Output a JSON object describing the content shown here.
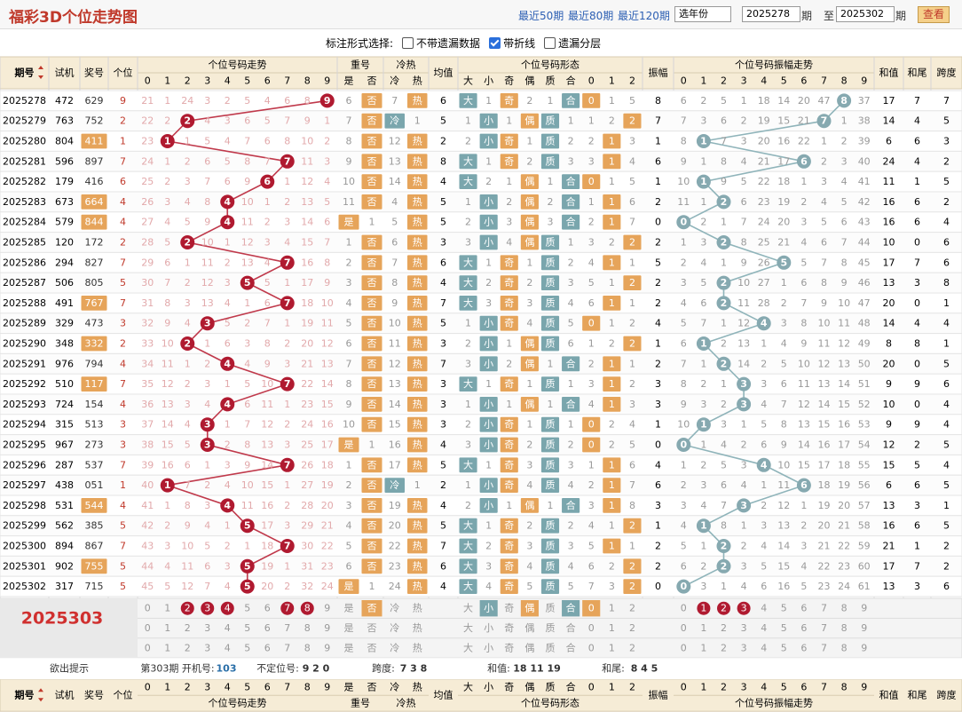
{
  "header": {
    "title": "福彩3D个位走势图",
    "links": [
      "最近50期",
      "最近80期",
      "最近120期"
    ],
    "year_select": "选年份",
    "from": "2025278",
    "from_unit": "期",
    "to_label": "至",
    "to": "2025302",
    "to_unit": "期",
    "button": "查看"
  },
  "options": {
    "label": "标注形式选择:",
    "items": [
      {
        "label": "不带遗漏数据",
        "checked": false
      },
      {
        "label": "带折线",
        "checked": true
      },
      {
        "label": "遗漏分层",
        "checked": false
      }
    ]
  },
  "columns": {
    "period": "期号",
    "test": "试机",
    "prize": "奖号",
    "digit": "个位",
    "trend": "个位号码走势",
    "trend_cols": [
      0,
      1,
      2,
      3,
      4,
      5,
      6,
      7,
      8,
      9
    ],
    "repeat": "重号",
    "repeat_cols": [
      "是",
      "否"
    ],
    "coldhot": "冷热",
    "coldhot_cols": [
      "冷",
      "热"
    ],
    "avg": "均值",
    "shape": "个位号码形态",
    "shape_cols": [
      "大",
      "小",
      "奇",
      "偶",
      "质",
      "合",
      0,
      1,
      2
    ],
    "amp": "振幅",
    "amp_trend": "个位号码振幅走势",
    "amp_cols": [
      0,
      1,
      2,
      3,
      4,
      5,
      6,
      7,
      8,
      9
    ],
    "sum": "和值",
    "tail": "和尾",
    "span": "跨度"
  },
  "rows": [
    {
      "period": "2025278",
      "test": "472",
      "prize": "629",
      "digit": 9,
      "trend": [
        21,
        1,
        24,
        3,
        2,
        5,
        4,
        6,
        8,
        9
      ],
      "repeat": [
        6,
        "否"
      ],
      "coldhot": [
        7,
        "热"
      ],
      "avg": 6,
      "shape": [
        "大",
        1,
        "奇",
        2,
        1,
        "合",
        0,
        1,
        5
      ],
      "amp": 8,
      "amp_trend": [
        6,
        2,
        5,
        1,
        18,
        14,
        20,
        47,
        8,
        37
      ],
      "sum": 17,
      "tail": 7,
      "span": 7
    },
    {
      "period": "2025279",
      "test": "763",
      "prize": "752",
      "digit": 2,
      "trend": [
        22,
        2,
        2,
        4,
        3,
        6,
        5,
        7,
        9,
        1
      ],
      "repeat": [
        7,
        "否"
      ],
      "coldhot": [
        "冷",
        1
      ],
      "avg": 5,
      "shape": [
        1,
        "小",
        1,
        "偶",
        "质",
        1,
        1,
        2,
        2
      ],
      "amp": 7,
      "amp_trend": [
        7,
        3,
        6,
        2,
        19,
        15,
        21,
        7,
        1,
        38
      ],
      "sum": 14,
      "tail": 4,
      "span": 5
    },
    {
      "period": "2025280",
      "test": "804",
      "prize": "411",
      "digit": 1,
      "trend": [
        23,
        1,
        1,
        5,
        4,
        7,
        6,
        8,
        10,
        2
      ],
      "repeat": [
        8,
        "否"
      ],
      "coldhot": [
        12,
        "热"
      ],
      "avg": 2,
      "shape": [
        2,
        "小",
        "奇",
        1,
        "质",
        2,
        2,
        1,
        3
      ],
      "amp": 1,
      "amp_trend": [
        8,
        1,
        7,
        3,
        20,
        16,
        22,
        1,
        2,
        39
      ],
      "sum": 6,
      "tail": 6,
      "span": 3
    },
    {
      "period": "2025281",
      "test": "596",
      "prize": "897",
      "digit": 7,
      "trend": [
        24,
        1,
        2,
        6,
        5,
        8,
        7,
        7,
        11,
        3
      ],
      "repeat": [
        9,
        "否"
      ],
      "coldhot": [
        13,
        "热"
      ],
      "avg": 8,
      "shape": [
        "大",
        1,
        "奇",
        2,
        "质",
        3,
        3,
        1,
        4
      ],
      "amp": 6,
      "amp_trend": [
        9,
        1,
        8,
        4,
        21,
        17,
        6,
        2,
        3,
        40
      ],
      "sum": 24,
      "tail": 4,
      "span": 2
    },
    {
      "period": "2025282",
      "test": "179",
      "prize": "416",
      "digit": 6,
      "trend": [
        25,
        2,
        3,
        7,
        6,
        9,
        6,
        1,
        12,
        4
      ],
      "repeat": [
        10,
        "否"
      ],
      "coldhot": [
        14,
        "热"
      ],
      "avg": 4,
      "shape": [
        "大",
        2,
        1,
        "偶",
        1,
        "合",
        0,
        1,
        5
      ],
      "amp": 1,
      "amp_trend": [
        10,
        1,
        9,
        5,
        22,
        18,
        1,
        3,
        4,
        41
      ],
      "sum": 11,
      "tail": 1,
      "span": 5
    },
    {
      "period": "2025283",
      "test": "673",
      "prize": "664",
      "digit": 4,
      "trend": [
        26,
        3,
        4,
        8,
        4,
        10,
        1,
        2,
        13,
        5
      ],
      "repeat": [
        11,
        "否"
      ],
      "coldhot": [
        4,
        "热"
      ],
      "avg": 5,
      "shape": [
        1,
        "小",
        2,
        "偶",
        2,
        "合",
        1,
        1,
        6
      ],
      "amp": 2,
      "amp_trend": [
        11,
        1,
        2,
        6,
        23,
        19,
        2,
        4,
        5,
        42
      ],
      "sum": 16,
      "tail": 6,
      "span": 2
    },
    {
      "period": "2025284",
      "test": "579",
      "prize": "844",
      "digit": 4,
      "trend": [
        27,
        4,
        5,
        9,
        4,
        11,
        2,
        3,
        14,
        6
      ],
      "repeat": [
        "是",
        1
      ],
      "coldhot": [
        5,
        "热"
      ],
      "avg": 5,
      "shape": [
        2,
        "小",
        3,
        "偶",
        3,
        "合",
        2,
        1,
        7
      ],
      "amp": 0,
      "amp_trend": [
        0,
        2,
        1,
        7,
        24,
        20,
        3,
        5,
        6,
        43
      ],
      "sum": 16,
      "tail": 6,
      "span": 4
    },
    {
      "period": "2025285",
      "test": "120",
      "prize": "172",
      "digit": 2,
      "trend": [
        28,
        5,
        2,
        10,
        1,
        12,
        3,
        4,
        15,
        7
      ],
      "repeat": [
        1,
        "否"
      ],
      "coldhot": [
        6,
        "热"
      ],
      "avg": 3,
      "shape": [
        3,
        "小",
        4,
        "偶",
        "质",
        1,
        3,
        2,
        2
      ],
      "amp": 2,
      "amp_trend": [
        1,
        3,
        2,
        8,
        25,
        21,
        4,
        6,
        7,
        44
      ],
      "sum": 10,
      "tail": 0,
      "span": 6
    },
    {
      "period": "2025286",
      "test": "294",
      "prize": "827",
      "digit": 7,
      "trend": [
        29,
        6,
        1,
        11,
        2,
        13,
        4,
        7,
        16,
        8
      ],
      "repeat": [
        2,
        "否"
      ],
      "coldhot": [
        7,
        "热"
      ],
      "avg": 6,
      "shape": [
        "大",
        1,
        "奇",
        1,
        "质",
        2,
        4,
        1,
        1
      ],
      "amp": 5,
      "amp_trend": [
        2,
        4,
        1,
        9,
        26,
        5,
        5,
        7,
        8,
        45
      ],
      "sum": 17,
      "tail": 7,
      "span": 6
    },
    {
      "period": "2025287",
      "test": "506",
      "prize": "805",
      "digit": 5,
      "trend": [
        30,
        7,
        2,
        12,
        3,
        5,
        5,
        1,
        17,
        9
      ],
      "repeat": [
        3,
        "否"
      ],
      "coldhot": [
        8,
        "热"
      ],
      "avg": 4,
      "shape": [
        "大",
        2,
        "奇",
        2,
        "质",
        3,
        5,
        1,
        2
      ],
      "amp": 2,
      "amp_trend": [
        3,
        5,
        2,
        10,
        27,
        1,
        6,
        8,
        9,
        46
      ],
      "sum": 13,
      "tail": 3,
      "span": 8
    },
    {
      "period": "2025288",
      "test": "491",
      "prize": "767",
      "digit": 7,
      "trend": [
        31,
        8,
        3,
        13,
        4,
        1,
        6,
        7,
        18,
        10
      ],
      "repeat": [
        4,
        "否"
      ],
      "coldhot": [
        9,
        "热"
      ],
      "avg": 7,
      "shape": [
        "大",
        3,
        "奇",
        3,
        "质",
        4,
        6,
        1,
        1
      ],
      "amp": 2,
      "amp_trend": [
        4,
        6,
        2,
        11,
        28,
        2,
        7,
        9,
        10,
        47
      ],
      "sum": 20,
      "tail": 0,
      "span": 1
    },
    {
      "period": "2025289",
      "test": "329",
      "prize": "473",
      "digit": 3,
      "trend": [
        32,
        9,
        4,
        3,
        5,
        2,
        7,
        1,
        19,
        11
      ],
      "repeat": [
        5,
        "否"
      ],
      "coldhot": [
        10,
        "热"
      ],
      "avg": 5,
      "shape": [
        1,
        "小",
        "奇",
        4,
        "质",
        5,
        0,
        1,
        2
      ],
      "amp": 4,
      "amp_trend": [
        5,
        7,
        1,
        12,
        4,
        3,
        8,
        10,
        11,
        48
      ],
      "sum": 14,
      "tail": 4,
      "span": 4
    },
    {
      "period": "2025290",
      "test": "348",
      "prize": "332",
      "digit": 2,
      "trend": [
        33,
        10,
        2,
        1,
        6,
        3,
        8,
        2,
        20,
        12
      ],
      "repeat": [
        6,
        "否"
      ],
      "coldhot": [
        11,
        "热"
      ],
      "avg": 3,
      "shape": [
        2,
        "小",
        1,
        "偶",
        "质",
        6,
        1,
        2,
        2
      ],
      "amp": 1,
      "amp_trend": [
        6,
        1,
        2,
        13,
        1,
        4,
        9,
        11,
        12,
        49
      ],
      "sum": 8,
      "tail": 8,
      "span": 1
    },
    {
      "period": "2025291",
      "test": "976",
      "prize": "794",
      "digit": 4,
      "trend": [
        34,
        11,
        1,
        2,
        4,
        4,
        9,
        3,
        21,
        13
      ],
      "repeat": [
        7,
        "否"
      ],
      "coldhot": [
        12,
        "热"
      ],
      "avg": 7,
      "shape": [
        3,
        "小",
        2,
        "偶",
        1,
        "合",
        2,
        1,
        1
      ],
      "amp": 2,
      "amp_trend": [
        7,
        1,
        2,
        14,
        2,
        5,
        10,
        12,
        13,
        50
      ],
      "sum": 20,
      "tail": 0,
      "span": 5
    },
    {
      "period": "2025292",
      "test": "510",
      "prize": "117",
      "digit": 7,
      "trend": [
        35,
        12,
        2,
        3,
        1,
        5,
        10,
        7,
        22,
        14
      ],
      "repeat": [
        8,
        "否"
      ],
      "coldhot": [
        13,
        "热"
      ],
      "avg": 3,
      "shape": [
        "大",
        1,
        "奇",
        1,
        "质",
        1,
        3,
        1,
        2
      ],
      "amp": 3,
      "amp_trend": [
        8,
        2,
        1,
        3,
        3,
        6,
        11,
        13,
        14,
        51
      ],
      "sum": 9,
      "tail": 9,
      "span": 6
    },
    {
      "period": "2025293",
      "test": "724",
      "prize": "154",
      "digit": 4,
      "trend": [
        36,
        13,
        3,
        4,
        4,
        6,
        11,
        1,
        23,
        15
      ],
      "repeat": [
        9,
        "否"
      ],
      "coldhot": [
        14,
        "热"
      ],
      "avg": 3,
      "shape": [
        1,
        "小",
        1,
        "偶",
        1,
        "合",
        4,
        1,
        3
      ],
      "amp": 3,
      "amp_trend": [
        9,
        3,
        2,
        3,
        4,
        7,
        12,
        14,
        15,
        52
      ],
      "sum": 10,
      "tail": 0,
      "span": 4
    },
    {
      "period": "2025294",
      "test": "315",
      "prize": "513",
      "digit": 3,
      "trend": [
        37,
        14,
        4,
        3,
        1,
        7,
        12,
        2,
        24,
        16
      ],
      "repeat": [
        10,
        "否"
      ],
      "coldhot": [
        15,
        "热"
      ],
      "avg": 3,
      "shape": [
        2,
        "小",
        "奇",
        1,
        "质",
        1,
        0,
        2,
        4
      ],
      "amp": 1,
      "amp_trend": [
        10,
        1,
        3,
        1,
        5,
        8,
        13,
        15,
        16,
        53
      ],
      "sum": 9,
      "tail": 9,
      "span": 4
    },
    {
      "period": "2025295",
      "test": "967",
      "prize": "273",
      "digit": 3,
      "trend": [
        38,
        15,
        5,
        3,
        2,
        8,
        13,
        3,
        25,
        17
      ],
      "repeat": [
        "是",
        1
      ],
      "coldhot": [
        16,
        "热"
      ],
      "avg": 4,
      "shape": [
        3,
        "小",
        "奇",
        2,
        "质",
        2,
        0,
        2,
        5
      ],
      "amp": 0,
      "amp_trend": [
        0,
        1,
        4,
        2,
        6,
        9,
        14,
        16,
        17,
        54
      ],
      "sum": 12,
      "tail": 2,
      "span": 5
    },
    {
      "period": "2025296",
      "test": "287",
      "prize": "537",
      "digit": 7,
      "trend": [
        39,
        16,
        6,
        1,
        3,
        9,
        14,
        7,
        26,
        18
      ],
      "repeat": [
        1,
        "否"
      ],
      "coldhot": [
        17,
        "热"
      ],
      "avg": 5,
      "shape": [
        "大",
        1,
        "奇",
        3,
        "质",
        3,
        1,
        1,
        6
      ],
      "amp": 4,
      "amp_trend": [
        1,
        2,
        5,
        3,
        4,
        10,
        15,
        17,
        18,
        55
      ],
      "sum": 15,
      "tail": 5,
      "span": 4
    },
    {
      "period": "2025297",
      "test": "438",
      "prize": "051",
      "digit": 1,
      "trend": [
        40,
        1,
        7,
        2,
        4,
        10,
        15,
        1,
        27,
        19
      ],
      "repeat": [
        2,
        "否"
      ],
      "coldhot": [
        "冷",
        1
      ],
      "avg": 2,
      "shape": [
        1,
        "小",
        "奇",
        4,
        "质",
        4,
        2,
        1,
        7
      ],
      "amp": 6,
      "amp_trend": [
        2,
        3,
        6,
        4,
        1,
        11,
        6,
        18,
        19,
        56
      ],
      "sum": 6,
      "tail": 6,
      "span": 5
    },
    {
      "period": "2025298",
      "test": "531",
      "prize": "544",
      "digit": 4,
      "trend": [
        41,
        1,
        8,
        3,
        4,
        11,
        16,
        2,
        28,
        20
      ],
      "repeat": [
        3,
        "否"
      ],
      "coldhot": [
        19,
        "热"
      ],
      "avg": 4,
      "shape": [
        2,
        "小",
        1,
        "偶",
        1,
        "合",
        3,
        1,
        8
      ],
      "amp": 3,
      "amp_trend": [
        3,
        4,
        7,
        3,
        2,
        12,
        1,
        19,
        20,
        57
      ],
      "sum": 13,
      "tail": 3,
      "span": 1
    },
    {
      "period": "2025299",
      "test": "562",
      "prize": "385",
      "digit": 5,
      "trend": [
        42,
        2,
        9,
        4,
        1,
        5,
        17,
        3,
        29,
        21
      ],
      "repeat": [
        4,
        "否"
      ],
      "coldhot": [
        20,
        "热"
      ],
      "avg": 5,
      "shape": [
        "大",
        1,
        "奇",
        2,
        "质",
        2,
        4,
        1,
        2
      ],
      "amp": 1,
      "amp_trend": [
        4,
        1,
        8,
        1,
        3,
        13,
        2,
        20,
        21,
        58
      ],
      "sum": 16,
      "tail": 6,
      "span": 5
    },
    {
      "period": "2025300",
      "test": "894",
      "prize": "867",
      "digit": 7,
      "trend": [
        43,
        3,
        10,
        5,
        2,
        1,
        18,
        7,
        30,
        22
      ],
      "repeat": [
        5,
        "否"
      ],
      "coldhot": [
        22,
        "热"
      ],
      "avg": 7,
      "shape": [
        "大",
        2,
        "奇",
        3,
        "质",
        3,
        5,
        1,
        1
      ],
      "amp": 2,
      "amp_trend": [
        5,
        1,
        2,
        2,
        4,
        14,
        3,
        21,
        22,
        59
      ],
      "sum": 21,
      "tail": 1,
      "span": 2
    },
    {
      "period": "2025301",
      "test": "902",
      "prize": "755",
      "digit": 5,
      "trend": [
        44,
        4,
        11,
        6,
        3,
        5,
        19,
        1,
        31,
        23
      ],
      "repeat": [
        6,
        "否"
      ],
      "coldhot": [
        23,
        "热"
      ],
      "avg": 6,
      "shape": [
        "大",
        3,
        "奇",
        4,
        "质",
        4,
        6,
        2,
        2
      ],
      "amp": 2,
      "amp_trend": [
        6,
        2,
        2,
        3,
        5,
        15,
        4,
        22,
        23,
        60
      ],
      "sum": 17,
      "tail": 7,
      "span": 2
    },
    {
      "period": "2025302",
      "test": "317",
      "prize": "715",
      "digit": 5,
      "trend": [
        45,
        5,
        12,
        7,
        4,
        5,
        20,
        2,
        32,
        24
      ],
      "repeat": [
        "是",
        1
      ],
      "coldhot": [
        24,
        "热"
      ],
      "avg": 4,
      "shape": [
        "大",
        4,
        "奇",
        5,
        "质",
        5,
        7,
        3,
        2
      ],
      "amp": 0,
      "amp_trend": [
        0,
        3,
        1,
        4,
        6,
        16,
        5,
        23,
        24,
        61
      ],
      "sum": 13,
      "tail": 3,
      "span": 6
    }
  ],
  "next_period": "2025303",
  "picked": [
    {
      "trend": [
        2,
        3,
        4,
        7,
        8
      ],
      "repeat": [
        1
      ],
      "coldhot": [],
      "shape": [
        1,
        3,
        5,
        6
      ],
      "amp": [
        1,
        2,
        3
      ]
    },
    {
      "trend": [],
      "repeat": [],
      "coldhot": [],
      "shape": [],
      "amp": []
    },
    {
      "trend": [],
      "repeat": [],
      "coldhot": [],
      "shape": [],
      "amp": []
    }
  ],
  "footer": {
    "hint": "欲出提示",
    "issue": "第303期 开机号:",
    "open": "103",
    "unfixed_label": "不定位号:",
    "unfixed": "9 2 0",
    "span_label": "跨度:",
    "span": "7 3 8",
    "sum_label": "和值:",
    "sum": "18 11 19",
    "tail_label": "和尾:",
    "tail": "8 4 5"
  }
}
